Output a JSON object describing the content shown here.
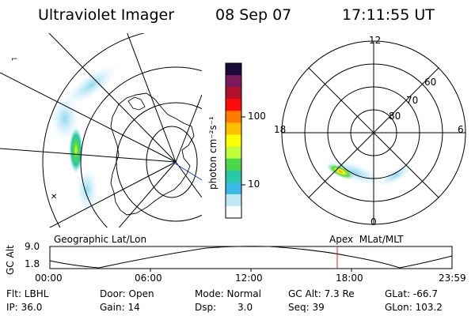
{
  "header": {
    "instrument": "Ultraviolet Imager",
    "date": "08 Sep 07",
    "time": "17:11:55 UT"
  },
  "colorbar": {
    "unit_label": "photon cm⁻²s⁻¹",
    "ticks": [
      "100",
      "10"
    ],
    "colors": [
      "#1a0a3a",
      "#7a1a5a",
      "#b0102a",
      "#ff0a0a",
      "#ff7a00",
      "#ffc000",
      "#ffff00",
      "#bfff3a",
      "#4ad84a",
      "#28c8a8",
      "#3ab8e6",
      "#bfe8f6",
      "#ffffff"
    ]
  },
  "geo_map": {
    "label": "Geographic Lat/Lon"
  },
  "polar_map": {
    "label": "Apex  MLat/MLT",
    "mlt_labels": [
      "12",
      "18",
      "6",
      "0"
    ],
    "lat_labels": [
      "60",
      "70",
      "80"
    ]
  },
  "altitude_plot": {
    "ylabel": "GC Alt",
    "yticks": [
      "9.0",
      "1.8"
    ],
    "xticks": [
      "00:00",
      "06:00",
      "12:00",
      "18:00",
      "23:59"
    ],
    "marker_color": "#e02020"
  },
  "status": {
    "filter": "Flt: LBHL",
    "door": "Door: Open",
    "mode": "Mode: Normal",
    "gc_alt": "GC Alt: 7.3 Re",
    "glat": "GLat: -66.7",
    "ip": "IP: 36.0",
    "gain": "Gain: 14",
    "dsp_label": "Dsp:",
    "dsp_value": "3.0",
    "seq": "Seq: 39",
    "glon": "GLon: 103.2"
  }
}
